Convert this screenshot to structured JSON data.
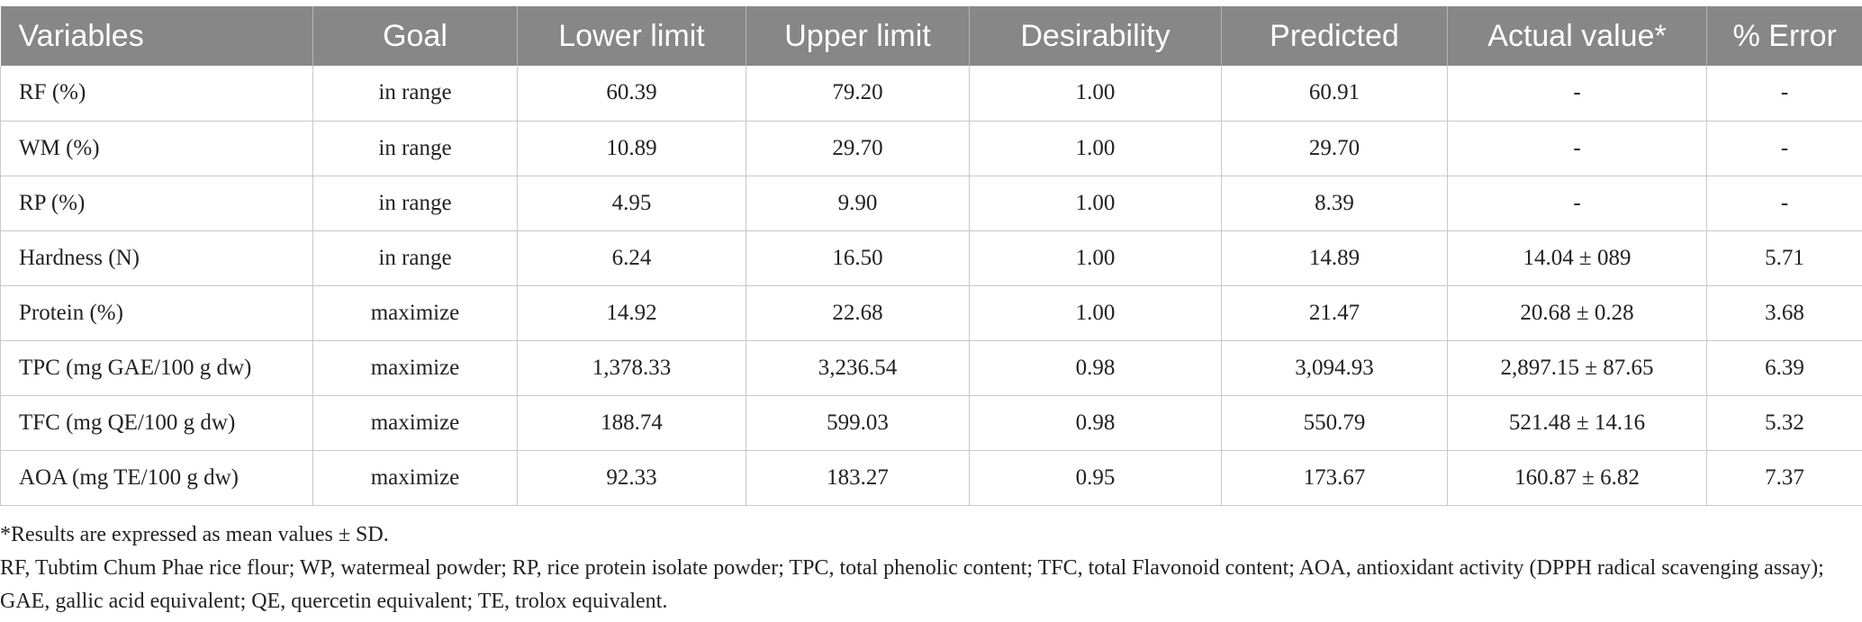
{
  "header": {
    "columns": [
      "Variables",
      "Goal",
      "Lower limit",
      "Upper limit",
      "Desirability",
      "Predicted",
      "Actual value*",
      "% Error"
    ]
  },
  "table": {
    "rows": [
      [
        "RF (%)",
        "in range",
        "60.39",
        "79.20",
        "1.00",
        "60.91",
        "-",
        "-"
      ],
      [
        "WM (%)",
        "in range",
        "10.89",
        "29.70",
        "1.00",
        "29.70",
        "-",
        "-"
      ],
      [
        "RP (%)",
        "in range",
        "4.95",
        "9.90",
        "1.00",
        "8.39",
        "-",
        "-"
      ],
      [
        "Hardness (N)",
        "in range",
        "6.24",
        "16.50",
        "1.00",
        "14.89",
        "14.04 ± 089",
        "5.71"
      ],
      [
        "Protein (%)",
        "maximize",
        "14.92",
        "22.68",
        "1.00",
        "21.47",
        "20.68 ± 0.28",
        "3.68"
      ],
      [
        "TPC (mg GAE/100 g dw)",
        "maximize",
        "1,378.33",
        "3,236.54",
        "0.98",
        "3,094.93",
        "2,897.15 ± 87.65",
        "6.39"
      ],
      [
        "TFC (mg QE/100 g dw)",
        "maximize",
        "188.74",
        "599.03",
        "0.98",
        "550.79",
        "521.48 ± 14.16",
        "5.32"
      ],
      [
        "AOA (mg TE/100 g dw)",
        "maximize",
        "92.33",
        "183.27",
        "0.95",
        "173.67",
        "160.87 ± 6.82",
        "7.37"
      ]
    ]
  },
  "footnotes": [
    "*Results are expressed as mean values ± SD.",
    "RF, Tubtim Chum Phae rice flour; WP, watermeal powder; RP, rice protein isolate powder; TPC, total phenolic content; TFC, total Flavonoid content; AOA, antioxidant activity (DPPH radical scavenging assay); GAE, gallic acid equivalent; QE, quercetin equivalent; TE, trolox equivalent."
  ]
}
